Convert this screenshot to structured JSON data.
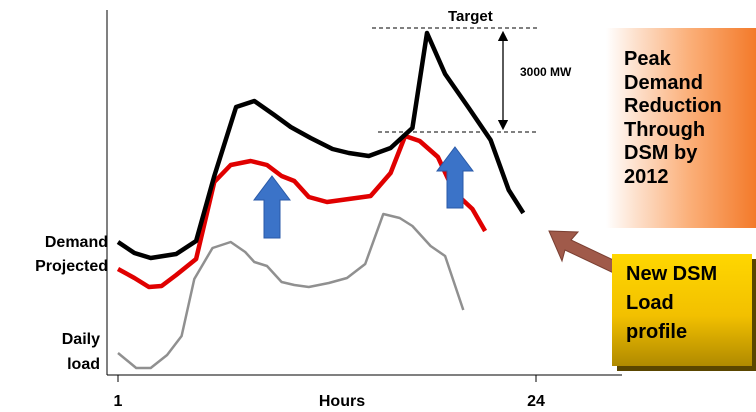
{
  "chart_data": {
    "type": "line",
    "xlabel": "Hours",
    "x_tick_labels": [
      "1",
      "24"
    ],
    "x_tick_values": [
      1,
      24
    ],
    "series": [
      {
        "name": "Demand Projected",
        "color": "#000000",
        "points": [
          [
            1,
            242
          ],
          [
            1.9,
            253
          ],
          [
            2.8,
            258
          ],
          [
            3.5,
            256
          ],
          [
            4.2,
            254
          ],
          [
            5.3,
            241
          ],
          [
            6.3,
            176
          ],
          [
            7.5,
            107
          ],
          [
            8.5,
            101
          ],
          [
            9.6,
            115
          ],
          [
            10.5,
            127
          ],
          [
            11.6,
            138
          ],
          [
            12.8,
            149
          ],
          [
            13.7,
            153
          ],
          [
            14.8,
            156
          ],
          [
            16,
            148
          ],
          [
            17.2,
            128
          ],
          [
            18,
            33
          ],
          [
            19,
            74
          ],
          [
            20.3,
            108
          ],
          [
            21.5,
            140
          ],
          [
            22.5,
            190
          ],
          [
            23.3,
            213
          ]
        ]
      },
      {
        "name": "New DSM Load profile",
        "color": "#e00000",
        "points": [
          [
            1,
            269
          ],
          [
            1.9,
            278
          ],
          [
            2.7,
            287
          ],
          [
            3.4,
            286
          ],
          [
            4.2,
            275
          ],
          [
            5.3,
            259
          ],
          [
            6.3,
            182
          ],
          [
            7.2,
            165
          ],
          [
            8.3,
            161
          ],
          [
            9.2,
            165
          ],
          [
            10,
            176
          ],
          [
            10.7,
            181
          ],
          [
            11.5,
            197
          ],
          [
            12.5,
            202
          ],
          [
            13.7,
            199
          ],
          [
            14.9,
            196
          ],
          [
            16,
            173
          ],
          [
            16.8,
            136
          ],
          [
            17.6,
            141
          ],
          [
            18.6,
            157
          ],
          [
            19.5,
            192
          ],
          [
            20.5,
            209
          ],
          [
            21.2,
            231
          ]
        ]
      },
      {
        "name": "Daily load",
        "color": "#909090",
        "points": [
          [
            1,
            353
          ],
          [
            2,
            368
          ],
          [
            2.8,
            368
          ],
          [
            3.7,
            355
          ],
          [
            4.5,
            336
          ],
          [
            5.2,
            279
          ],
          [
            6.2,
            248
          ],
          [
            7.2,
            242
          ],
          [
            8,
            252
          ],
          [
            8.5,
            262
          ],
          [
            9.2,
            266
          ],
          [
            10,
            282
          ],
          [
            10.7,
            285
          ],
          [
            11.5,
            287
          ],
          [
            12.6,
            283
          ],
          [
            13.6,
            278
          ],
          [
            14.6,
            264
          ],
          [
            15.6,
            214
          ],
          [
            16.5,
            218
          ],
          [
            17.2,
            226
          ],
          [
            18.2,
            246
          ],
          [
            19,
            256
          ],
          [
            20,
            310
          ]
        ]
      }
    ],
    "annotations": {
      "target": "Target",
      "mw_label": "3000 MW",
      "peak_box": [
        "Peak",
        "Demand",
        "Reduction",
        "Through",
        "DSM by",
        "2012"
      ],
      "new_box": [
        "New DSM",
        "Load",
        "profile"
      ],
      "left_labels": [
        "Demand",
        "Projected",
        "Daily",
        "load"
      ]
    },
    "colors": {
      "peak_arrow": "#3b73c8",
      "pointer_arrow": "#a05a4a"
    }
  }
}
